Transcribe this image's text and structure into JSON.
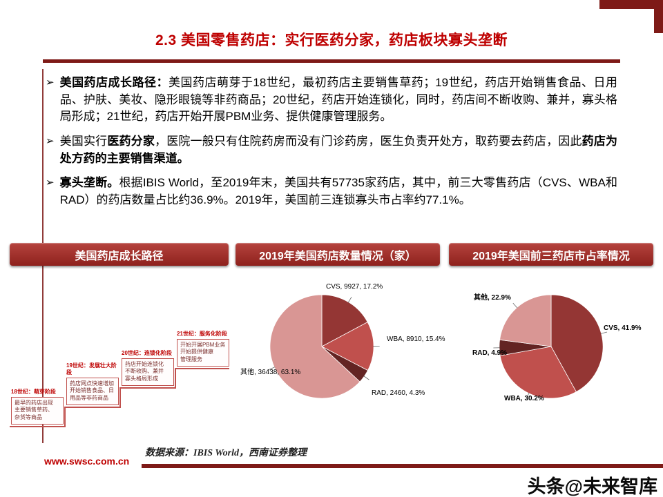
{
  "theme": {
    "title_red": "#BE0000",
    "dark_red": "#7E1A17",
    "banner_red_top": "#B5433E",
    "banner_red_bottom": "#8E211D"
  },
  "slide": {
    "title": "2.3 美国零售药店：实行医药分家，药店板块寡头垄断",
    "bullet_marker": "➢",
    "source_note": "数据来源：IBIS World，西南证券整理",
    "footer_url": "www.swsc.com.cn",
    "watermark": "头条@未来智库",
    "bullets": [
      {
        "segments": [
          {
            "text": "美国药店成长路径：",
            "bold": true
          },
          {
            "text": "美国药店萌芽于18世纪，最初药店主要销售草药；19世纪，药店开始销售食品、日用品、护肤、美妆、隐形眼镜等非药商品；20世纪，药店开始连锁化，同时，药店间不断收购、兼并，寡头格局形成；21世纪，药店开始开展PBM业务、提供健康管理服务。",
            "bold": false
          }
        ]
      },
      {
        "segments": [
          {
            "text": "美国实行",
            "bold": false
          },
          {
            "text": "医药分家",
            "bold": true
          },
          {
            "text": "，医院一般只有住院药房而没有门诊药房，医生负责开处方，取药要去药店，因此",
            "bold": false
          },
          {
            "text": "药店为处方药的主要销售渠道。",
            "bold": true
          }
        ]
      },
      {
        "segments": [
          {
            "text": "寡头垄断。",
            "bold": true
          },
          {
            "text": "根据IBIS World，至2019年末，美国共有57735家药店，其中，前三大零售药店（CVS、WBA和RAD）的药店数量占比约36.9%。2019年，美国前三连锁寡头市占率约77.1%。",
            "bold": false
          }
        ]
      }
    ]
  },
  "banners": [
    {
      "label": "美国药店成长路径"
    },
    {
      "label": "2019年美国药店数量情况（家）"
    },
    {
      "label": "2019年美国前三药店市占率情况"
    }
  ],
  "growth_path": {
    "stages": [
      {
        "label": "18世纪：萌芽阶段",
        "text": "最早的药店出现\n主要销售草药、\n杂货等商品"
      },
      {
        "label": "19世纪：发展壮大阶段",
        "text": "药店网点快速增加\n开始销售食品、日用品等非药商品"
      },
      {
        "label": "20世纪：连锁化阶段",
        "text": "药店开始连锁化\n不断收购、兼并\n寡头格局形成"
      },
      {
        "label": "21世纪：服务化阶段",
        "text": "开始开展PBM业务\n开始提供健康\n管理服务"
      }
    ]
  },
  "chart_data": [
    {
      "type": "pie",
      "title": "2019年美国药店数量情况（家）",
      "categories": [
        "CVS",
        "WBA",
        "RAD",
        "其他"
      ],
      "values": [
        9927,
        8910,
        2460,
        36438
      ],
      "percents": [
        "17.2%",
        "15.4%",
        "4.3%",
        "63.1%"
      ],
      "slice_labels": [
        "CVS, 9927, 17.2%",
        "WBA, 8910, 15.4%",
        "RAD, 2460, 4.3%",
        "其他, 36438, 63.1%"
      ],
      "colors": [
        "#943634",
        "#C0504D",
        "#632423",
        "#D99694"
      ],
      "start_angle_deg": -90,
      "clockwise": true,
      "legend": "none"
    },
    {
      "type": "pie",
      "title": "2019年美国前三药店市占率情况",
      "categories": [
        "CVS",
        "WBA",
        "RAD",
        "其他"
      ],
      "values": [
        41.9,
        30.2,
        4.9,
        22.9
      ],
      "percents": [
        "41.9%",
        "30.2%",
        "4.9%",
        "22.9%"
      ],
      "slice_labels": [
        "CVS, 41.9%",
        "WBA, 30.2%",
        "RAD, 4.9%",
        "其他, 22.9%"
      ],
      "colors": [
        "#943634",
        "#C0504D",
        "#632423",
        "#D99694"
      ],
      "start_angle_deg": -90,
      "clockwise": true,
      "legend": "none"
    }
  ]
}
